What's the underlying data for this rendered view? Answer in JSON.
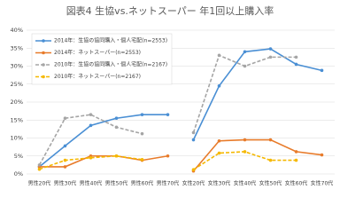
{
  "chart_data": {
    "type": "line",
    "title": "図表4 生協vs.ネットスーパー 年1回以上購入率",
    "categories": [
      "男性20代",
      "男性30代",
      "男性40代",
      "男性50代",
      "男性60代",
      "男性70代",
      "女性20代",
      "女性30代",
      "女性40代",
      "女性50代",
      "女性60代",
      "女性70代"
    ],
    "series": [
      {
        "name": "2014年：生協の協同購入・個人宅配(n=2553)",
        "color": "#4a8fd4",
        "dash": false,
        "values": [
          2.0,
          7.8,
          13.5,
          15.5,
          16.5,
          16.5,
          9.5,
          24.5,
          34.0,
          34.8,
          30.5,
          28.8
        ]
      },
      {
        "name": "2014年：ネットスーパー(n=2553)",
        "color": "#e87b2a",
        "dash": false,
        "values": [
          2.0,
          2.0,
          5.0,
          5.0,
          3.8,
          5.0,
          0.8,
          9.2,
          9.5,
          9.5,
          6.2,
          5.3
        ]
      },
      {
        "name": "2010年：生協の協同購入・個人宅配(n=2167)",
        "color": "#a5a5a5",
        "dash": true,
        "values": [
          2.5,
          15.5,
          16.5,
          13.0,
          11.2,
          null,
          11.5,
          33.0,
          30.0,
          32.5,
          32.5,
          null
        ]
      },
      {
        "name": "2010年：ネットスーパー(n=2167)",
        "color": "#f5b800",
        "dash": true,
        "values": [
          1.3,
          3.8,
          4.5,
          5.0,
          4.0,
          null,
          1.2,
          5.8,
          6.2,
          3.8,
          3.8,
          null
        ]
      }
    ],
    "ylim": [
      0,
      40
    ],
    "yticks": [
      {
        "value": 0,
        "label": "0%"
      },
      {
        "value": 5,
        "label": "5%"
      },
      {
        "value": 10,
        "label": "10%"
      },
      {
        "value": 15,
        "label": "15%"
      },
      {
        "value": 20,
        "label": "20%"
      },
      {
        "value": 25,
        "label": "25%"
      },
      {
        "value": 30,
        "label": "30%"
      },
      {
        "value": 35,
        "label": "35%"
      },
      {
        "value": 40,
        "label": "40%"
      }
    ],
    "grid": true
  }
}
